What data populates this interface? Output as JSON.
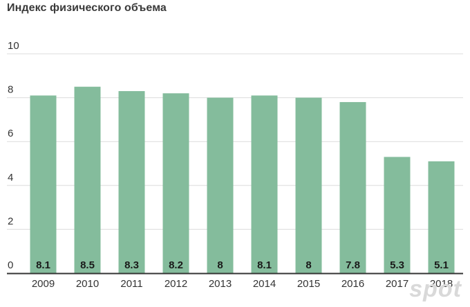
{
  "chart_data": {
    "type": "bar",
    "title": "Индекс физического объема",
    "categories": [
      "2009",
      "2010",
      "2011",
      "2012",
      "2013",
      "2014",
      "2015",
      "2016",
      "2017",
      "2018"
    ],
    "values": [
      8.1,
      8.5,
      8.3,
      8.2,
      8,
      8.1,
      8,
      7.8,
      5.3,
      5.1
    ],
    "data_labels": [
      "8.1",
      "8.5",
      "8.3",
      "8.2",
      "8",
      "8.1",
      "8",
      "7.8",
      "5.3",
      "5.1"
    ],
    "ylim": [
      0,
      10
    ],
    "yticks": [
      "0",
      "2",
      "4",
      "6",
      "8",
      "10"
    ],
    "xlabel": "",
    "ylabel": "",
    "grid": true,
    "bar_color": "#84bc9c",
    "label_color": "#1a1a1a",
    "grid_color": "#dcdcdc",
    "axis_color": "#333333"
  },
  "watermark": "spot"
}
